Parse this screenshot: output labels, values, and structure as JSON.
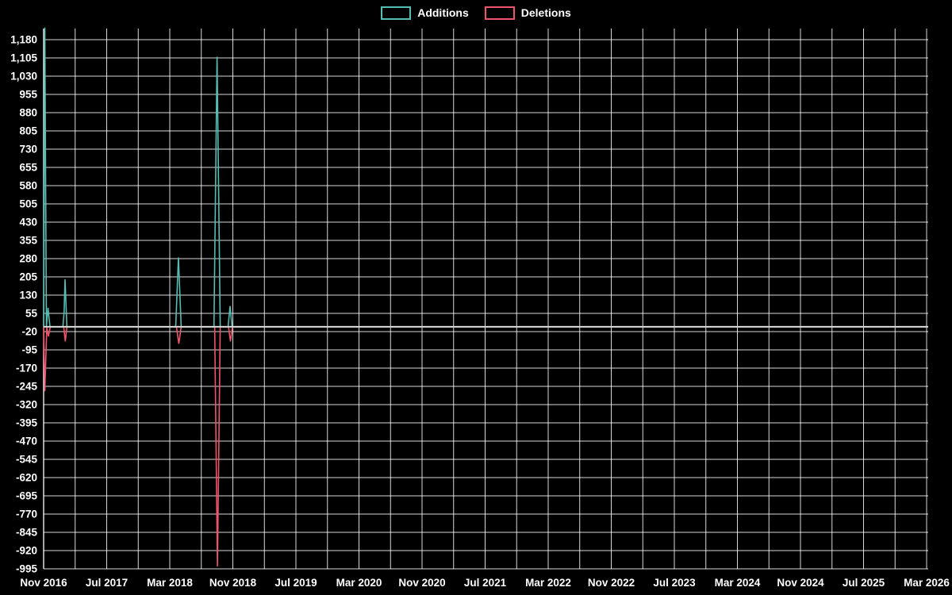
{
  "legend": {
    "items": [
      {
        "label": "Additions",
        "color": "#54bdb4"
      },
      {
        "label": "Deletions",
        "color": "#f0546c"
      }
    ]
  },
  "chart_data": {
    "type": "line",
    "title": "",
    "grid": "on",
    "legend_position": "top-center",
    "background": "#000000",
    "grid_color": "rgba(255,255,255,0.85)",
    "axis_label_color": "#ffffff",
    "zero_line_color": "#d8d8d8",
    "x_axis": {
      "tick_labels": [
        "Nov 2016",
        "Jul 2017",
        "Mar 2018",
        "Nov 2018",
        "Jul 2019",
        "Mar 2020",
        "Nov 2020",
        "Jul 2021",
        "Mar 2022",
        "Nov 2022",
        "Jul 2023",
        "Mar 2024",
        "Nov 2024",
        "Jul 2025",
        "Mar 2026"
      ],
      "tick_interval_months": 8,
      "minor_gridline_interval_months": 4,
      "domain_months": [
        0,
        112
      ]
    },
    "y_axis": {
      "min": -995,
      "max": 1180,
      "step": 75,
      "ticks": [
        1180,
        1105,
        1030,
        955,
        880,
        805,
        730,
        655,
        580,
        505,
        430,
        355,
        280,
        205,
        130,
        55,
        -20,
        -95,
        -170,
        -245,
        -320,
        -395,
        -470,
        -545,
        -620,
        -695,
        -770,
        -845,
        -920,
        -995
      ]
    },
    "series": [
      {
        "name": "Additions",
        "color": "#54bdb4",
        "points_month_value": [
          [
            0,
            0
          ],
          [
            0.15,
            1230
          ],
          [
            0.35,
            0
          ],
          [
            0.55,
            78
          ],
          [
            0.8,
            0
          ],
          [
            2.45,
            0
          ],
          [
            2.6,
            60
          ],
          [
            2.72,
            195
          ],
          [
            2.95,
            0
          ],
          [
            16.75,
            0
          ],
          [
            17.1,
            285
          ],
          [
            17.45,
            0
          ],
          [
            21.6,
            0
          ],
          [
            22.0,
            1110
          ],
          [
            22.4,
            0
          ],
          [
            23.4,
            0
          ],
          [
            23.65,
            85
          ],
          [
            23.9,
            0
          ],
          [
            112,
            0
          ]
        ]
      },
      {
        "name": "Deletions",
        "color": "#f0546c",
        "points_month_value": [
          [
            0,
            0
          ],
          [
            0.15,
            -265
          ],
          [
            0.4,
            0
          ],
          [
            0.6,
            -40
          ],
          [
            0.85,
            0
          ],
          [
            2.55,
            0
          ],
          [
            2.75,
            -60
          ],
          [
            2.95,
            0
          ],
          [
            16.85,
            0
          ],
          [
            17.15,
            -70
          ],
          [
            17.45,
            0
          ],
          [
            21.7,
            0
          ],
          [
            22.05,
            -985
          ],
          [
            22.4,
            0
          ],
          [
            23.45,
            0
          ],
          [
            23.7,
            -60
          ],
          [
            23.95,
            0
          ],
          [
            112,
            0
          ]
        ]
      }
    ]
  }
}
